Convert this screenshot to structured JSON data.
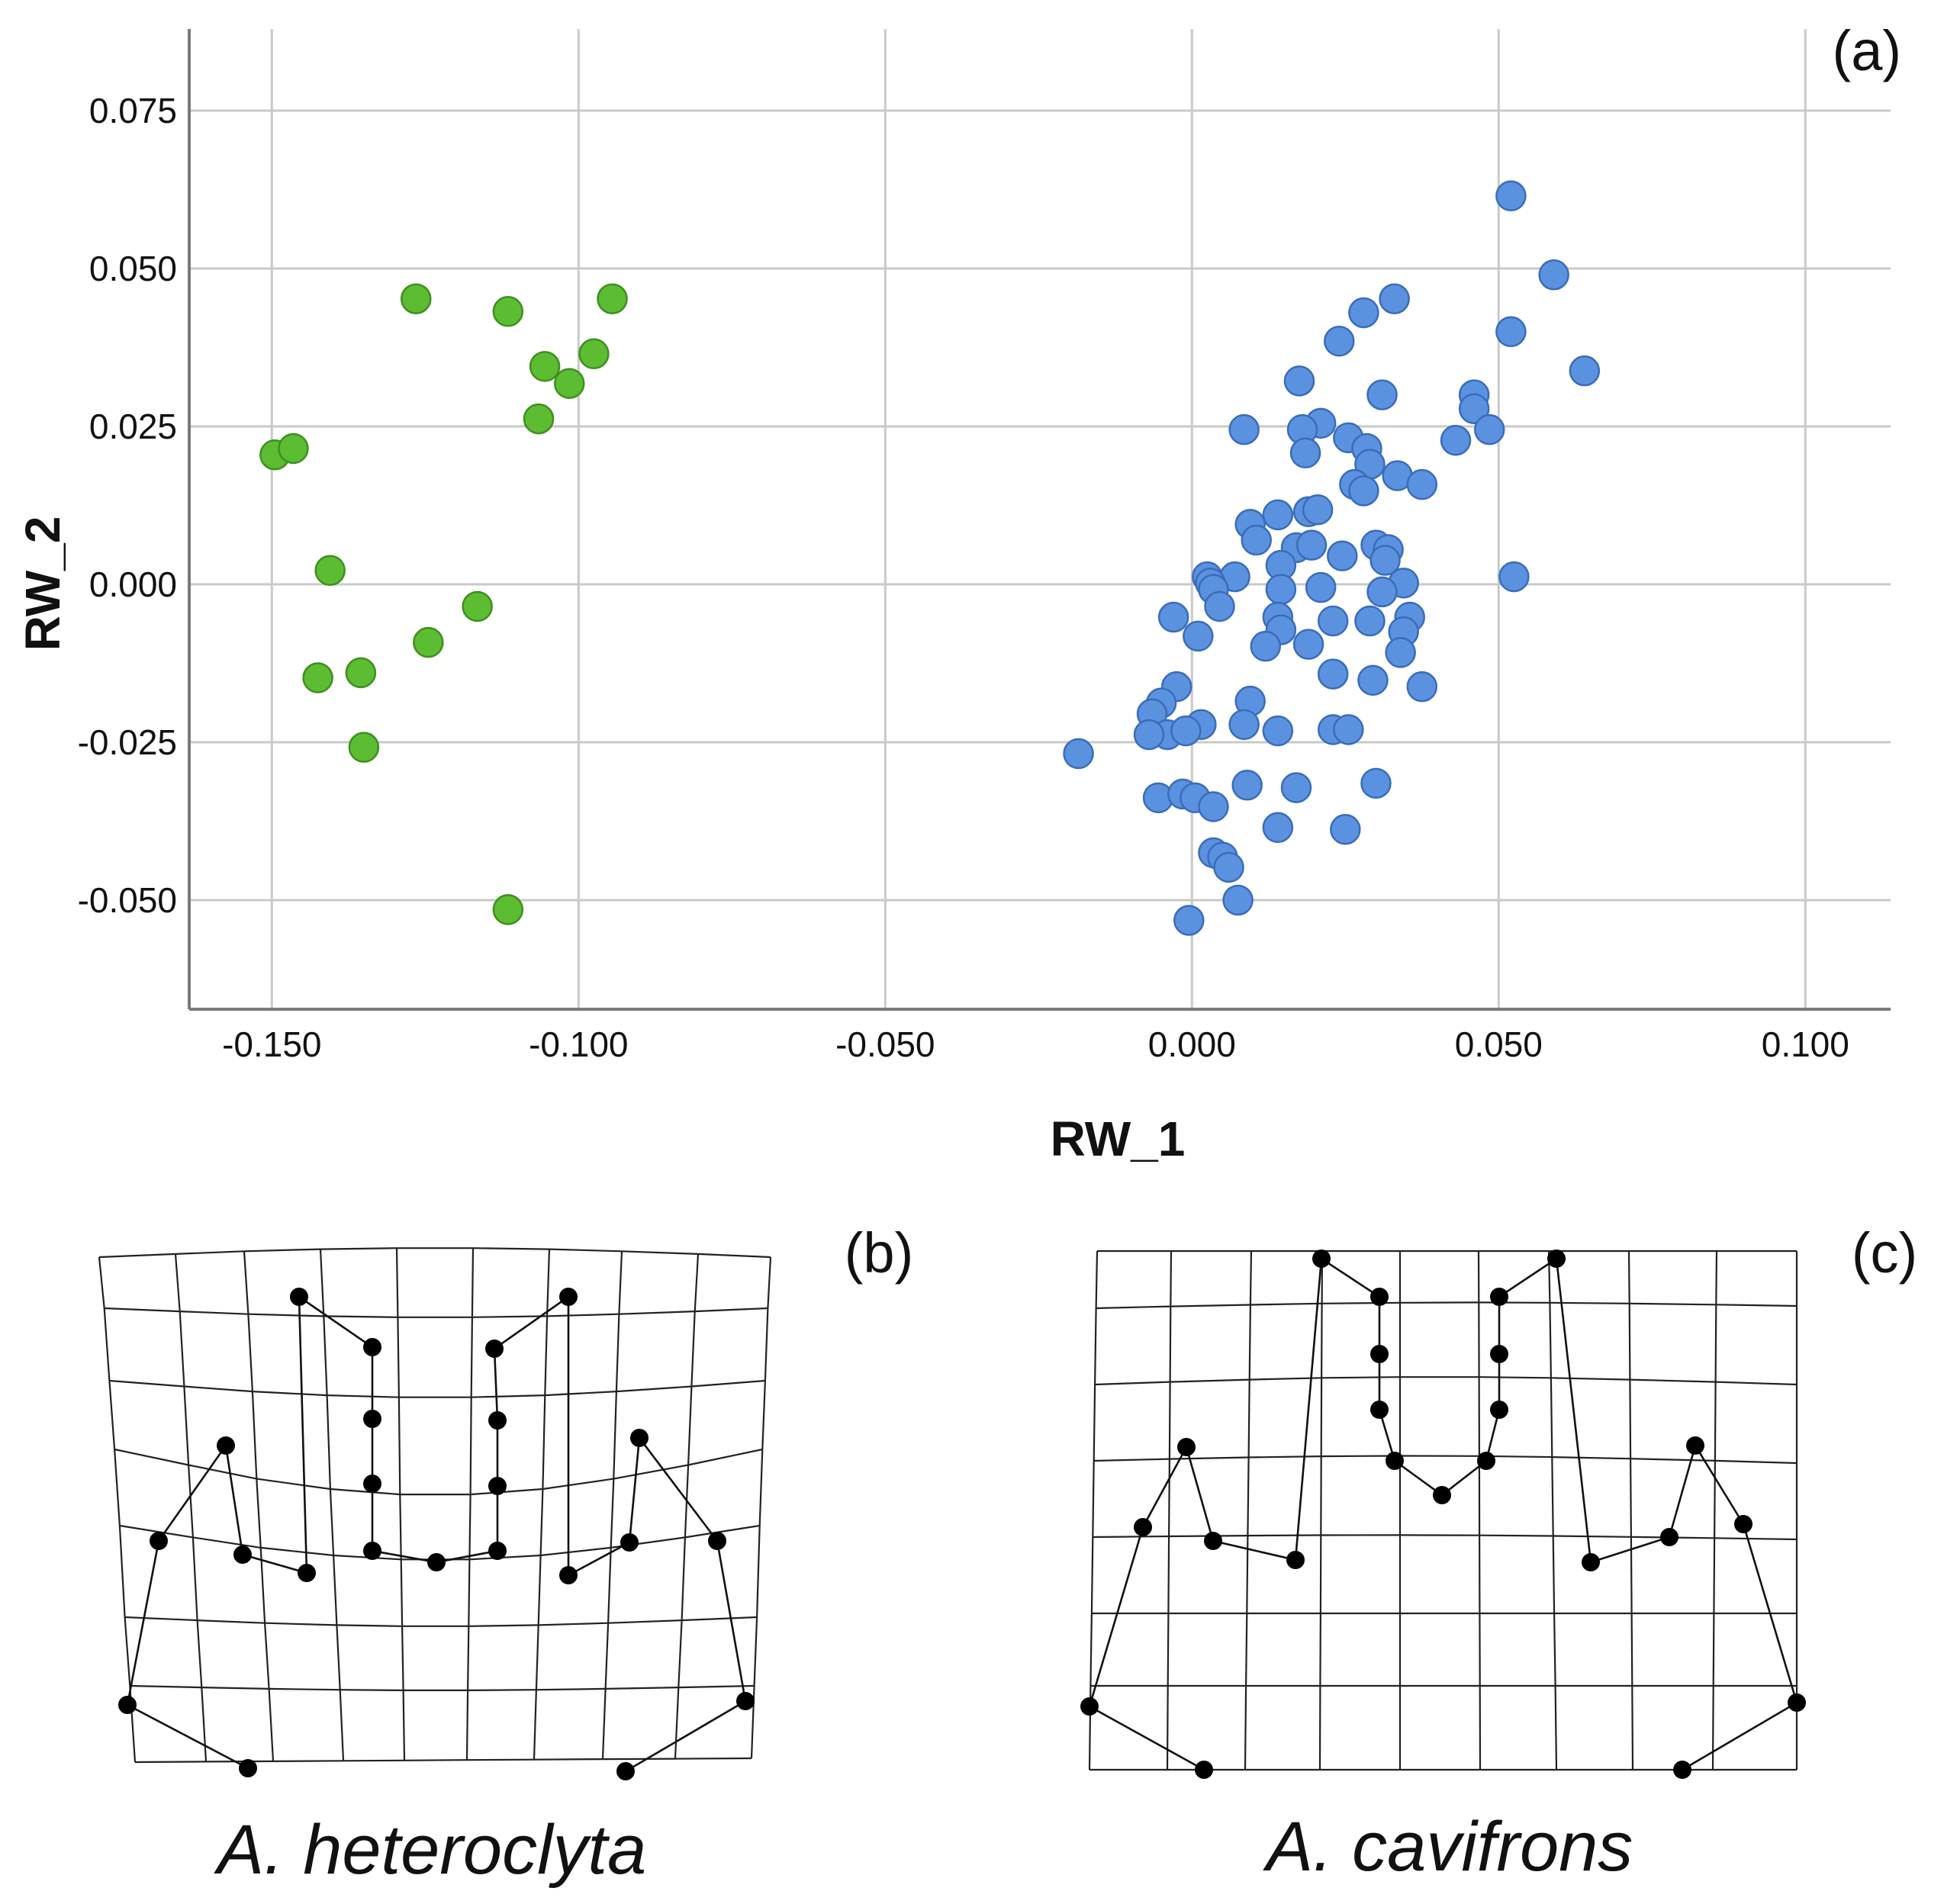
{
  "chart_data": [
    {
      "type": "scatter",
      "panel_label": "(a)",
      "xlabel": "RW_1",
      "ylabel": "RW_2",
      "xlim": [
        -0.165,
        0.113
      ],
      "ylim": [
        -0.068,
        0.087
      ],
      "xticks": [
        -0.15,
        -0.1,
        -0.05,
        0.0,
        0.05,
        0.1
      ],
      "xtick_labels": [
        "-0.150",
        "-0.100",
        "-0.050",
        "0.000",
        "0.050",
        "0.100"
      ],
      "yticks": [
        0.075,
        0.05,
        0.025,
        0.0,
        -0.025,
        -0.05
      ],
      "ytick_labels": [
        "0.075",
        "0.050",
        "0.025",
        "0.000",
        "-0.025",
        "-0.050"
      ],
      "grid": true,
      "series": [
        {
          "name": "A. heteroclyta",
          "color": "#5cbd32",
          "edge": "#3f8f1f",
          "points": [
            [
              -0.1265,
              0.0452
            ],
            [
              -0.1115,
              0.0432
            ],
            [
              -0.0945,
              0.0452
            ],
            [
              -0.0975,
              0.0365
            ],
            [
              -0.1055,
              0.0345
            ],
            [
              -0.1015,
              0.0318
            ],
            [
              -0.1065,
              0.0262
            ],
            [
              -0.1495,
              0.0205
            ],
            [
              -0.1465,
              0.0215
            ],
            [
              -0.1405,
              0.0022
            ],
            [
              -0.1165,
              -0.0035
            ],
            [
              -0.1245,
              -0.0092
            ],
            [
              -0.1355,
              -0.014
            ],
            [
              -0.1425,
              -0.0148
            ],
            [
              -0.135,
              -0.0258
            ],
            [
              -0.1115,
              -0.0515
            ]
          ]
        },
        {
          "name": "A. cavifrons",
          "color": "#5b92e0",
          "edge": "#3a6cb8",
          "points": [
            [
              0.052,
              0.0615
            ],
            [
              0.059,
              0.049
            ],
            [
              0.033,
              0.0452
            ],
            [
              0.028,
              0.043
            ],
            [
              0.052,
              0.04
            ],
            [
              0.024,
              0.0385
            ],
            [
              0.064,
              0.0338
            ],
            [
              0.0175,
              0.0322
            ],
            [
              0.031,
              0.03
            ],
            [
              0.046,
              0.03
            ],
            [
              0.046,
              0.0278
            ],
            [
              0.021,
              0.0255
            ],
            [
              0.0085,
              0.0245
            ],
            [
              0.018,
              0.0245
            ],
            [
              0.0485,
              0.0245
            ],
            [
              0.043,
              0.0228
            ],
            [
              0.0255,
              0.0232
            ],
            [
              0.0285,
              0.0215
            ],
            [
              0.0185,
              0.0208
            ],
            [
              0.029,
              0.019
            ],
            [
              0.0335,
              0.0172
            ],
            [
              0.0375,
              0.0158
            ],
            [
              0.0265,
              0.0158
            ],
            [
              0.028,
              0.0148
            ],
            [
              0.014,
              0.011
            ],
            [
              0.019,
              0.0115
            ],
            [
              0.0205,
              0.0118
            ],
            [
              0.0095,
              0.0095
            ],
            [
              0.0105,
              0.007
            ],
            [
              0.017,
              0.0058
            ],
            [
              0.0195,
              0.0062
            ],
            [
              0.0245,
              0.0045
            ],
            [
              0.03,
              0.0062
            ],
            [
              0.032,
              0.0055
            ],
            [
              0.0315,
              0.0038
            ],
            [
              0.0145,
              0.003
            ],
            [
              0.0025,
              0.0012
            ],
            [
              0.007,
              0.0012
            ],
            [
              0.0525,
              0.0012
            ],
            [
              0.0345,
              0.0002
            ],
            [
              0.003,
              0.0002
            ],
            [
              0.0035,
              -0.0008
            ],
            [
              0.0145,
              -0.0008
            ],
            [
              0.021,
              -0.0005
            ],
            [
              0.031,
              -0.0012
            ],
            [
              0.0045,
              -0.0035
            ],
            [
              -0.003,
              -0.0052
            ],
            [
              0.014,
              -0.0052
            ],
            [
              0.023,
              -0.0058
            ],
            [
              0.029,
              -0.0058
            ],
            [
              0.0355,
              -0.0052
            ],
            [
              0.0145,
              -0.0072
            ],
            [
              0.0345,
              -0.0075
            ],
            [
              0.001,
              -0.0082
            ],
            [
              0.019,
              -0.0095
            ],
            [
              0.012,
              -0.0098
            ],
            [
              0.034,
              -0.0108
            ],
            [
              0.023,
              -0.0142
            ],
            [
              0.0295,
              -0.0152
            ],
            [
              0.0375,
              -0.0162
            ],
            [
              -0.0025,
              -0.0162
            ],
            [
              -0.005,
              -0.0188
            ],
            [
              0.0095,
              -0.0185
            ],
            [
              -0.0065,
              -0.0205
            ],
            [
              0.0015,
              -0.0222
            ],
            [
              0.0085,
              -0.0222
            ],
            [
              0.014,
              -0.0232
            ],
            [
              0.023,
              -0.023
            ],
            [
              0.0255,
              -0.023
            ],
            [
              -0.004,
              -0.0238
            ],
            [
              -0.007,
              -0.0238
            ],
            [
              -0.001,
              -0.0232
            ],
            [
              -0.0185,
              -0.0268
            ],
            [
              -0.0055,
              -0.0338
            ],
            [
              -0.0015,
              -0.0332
            ],
            [
              0.0005,
              -0.0338
            ],
            [
              0.0035,
              -0.0352
            ],
            [
              0.009,
              -0.0318
            ],
            [
              0.017,
              -0.0322
            ],
            [
              0.03,
              -0.0315
            ],
            [
              0.014,
              -0.0385
            ],
            [
              0.025,
              -0.0388
            ],
            [
              0.0035,
              -0.0425
            ],
            [
              0.005,
              -0.0432
            ],
            [
              0.006,
              -0.0448
            ],
            [
              0.0075,
              -0.05
            ],
            [
              -0.0005,
              -0.0532
            ]
          ]
        }
      ]
    },
    {
      "type": "diagram",
      "panel_label": "(b)",
      "caption": "A. heteroclyta"
    },
    {
      "type": "diagram",
      "panel_label": "(c)",
      "caption": "A. cavifrons"
    }
  ]
}
